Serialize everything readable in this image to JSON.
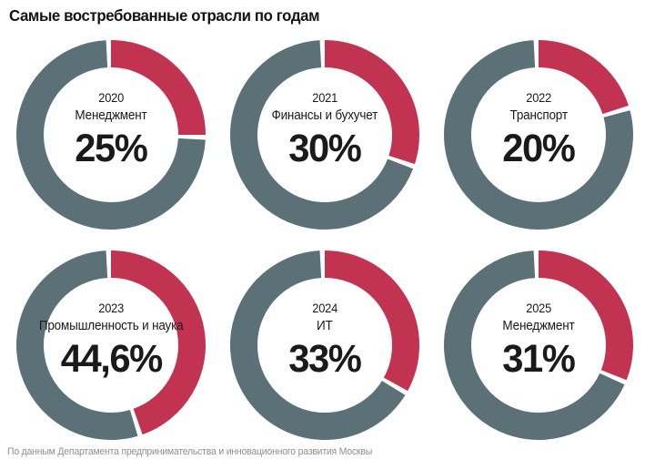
{
  "page": {
    "title": "Самые востребованные отрасли по годам",
    "source_note": "По данным Департамента предпринимательства и инновационного развития Москвы"
  },
  "colors": {
    "highlight": "#c13351",
    "remainder": "#5c7077",
    "text": "#1a1a1a",
    "muted_text": "#8f8f8f",
    "background": "#ffffff"
  },
  "chart_data": {
    "type": "pie",
    "subtype": "donut-grid",
    "title": "Самые востребованные отрасли по годам",
    "legend": "none",
    "layout": {
      "columns": 3,
      "rows": 2,
      "start_angle_deg": 0,
      "direction": "clockwise"
    },
    "charts": [
      {
        "year": "2020",
        "label": "Менеджмент",
        "value": 25,
        "value_label": "25%",
        "remainder": 75
      },
      {
        "year": "2021",
        "label": "Финансы и бухучет",
        "value": 30,
        "value_label": "30%",
        "remainder": 70
      },
      {
        "year": "2022",
        "label": "Транспорт",
        "value": 20,
        "value_label": "20%",
        "remainder": 80
      },
      {
        "year": "2023",
        "label": "Промышленность и наука",
        "value": 44.6,
        "value_label": "44,6%",
        "remainder": 55.4
      },
      {
        "year": "2024",
        "label": "ИТ",
        "value": 33,
        "value_label": "33%",
        "remainder": 67
      },
      {
        "year": "2025",
        "label": "Менеджмент",
        "value": 31,
        "value_label": "31%",
        "remainder": 69
      }
    ]
  }
}
